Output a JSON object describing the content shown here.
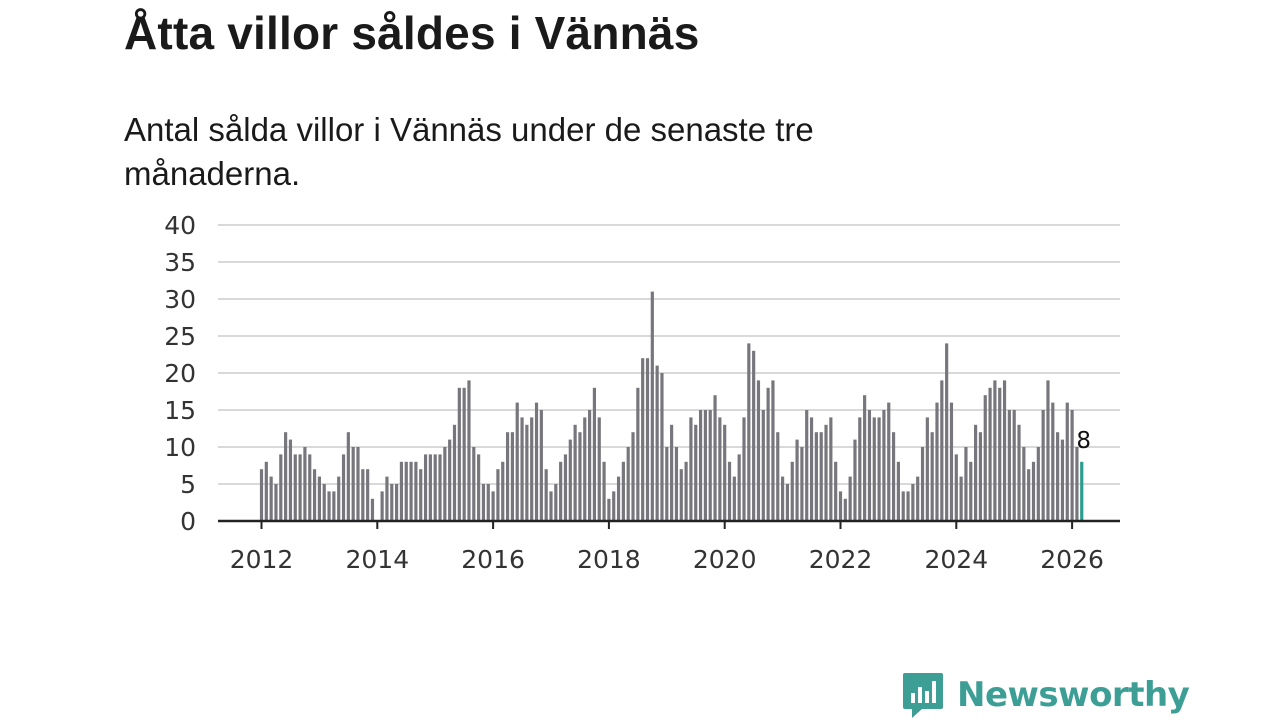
{
  "header": {
    "title": "Åtta villor såldes i Vännäs",
    "subtitle": "Antal sålda villor i Vännäs under de senaste tre månaderna."
  },
  "brand": {
    "name": "Newsworthy"
  },
  "colors": {
    "bar": "#76767c",
    "highlight": "#2a9d8f",
    "grid": "#d9d9d9",
    "axis": "#222222"
  },
  "chart_data": {
    "type": "bar",
    "title": "Åtta villor såldes i Vännäs",
    "xlabel": "",
    "ylabel": "",
    "ylim": [
      0,
      40
    ],
    "yticks": [
      "0",
      "5",
      "10",
      "15",
      "20",
      "25",
      "30",
      "35",
      "40"
    ],
    "xticks": [
      "2012",
      "2014",
      "2016",
      "2018",
      "2020",
      "2022",
      "2024",
      "2026"
    ],
    "start": "2012-01",
    "frequency": "monthly",
    "values": [
      7,
      8,
      6,
      5,
      9,
      12,
      11,
      9,
      9,
      10,
      9,
      7,
      6,
      5,
      4,
      4,
      6,
      9,
      12,
      10,
      10,
      7,
      7,
      3,
      0,
      4,
      6,
      5,
      5,
      8,
      8,
      8,
      8,
      7,
      9,
      9,
      9,
      9,
      10,
      11,
      13,
      18,
      18,
      19,
      10,
      9,
      5,
      5,
      4,
      7,
      8,
      12,
      12,
      16,
      14,
      13,
      14,
      16,
      15,
      7,
      4,
      5,
      8,
      9,
      11,
      13,
      12,
      14,
      15,
      18,
      14,
      8,
      3,
      4,
      6,
      8,
      10,
      12,
      18,
      22,
      22,
      31,
      21,
      20,
      10,
      13,
      10,
      7,
      8,
      14,
      13,
      15,
      15,
      15,
      17,
      14,
      13,
      8,
      6,
      9,
      14,
      24,
      23,
      19,
      15,
      18,
      19,
      12,
      6,
      5,
      8,
      11,
      10,
      15,
      14,
      12,
      12,
      13,
      14,
      8,
      4,
      3,
      6,
      11,
      14,
      17,
      15,
      14,
      14,
      15,
      16,
      12,
      8,
      4,
      4,
      5,
      6,
      10,
      14,
      12,
      16,
      19,
      24,
      16,
      9,
      6,
      10,
      8,
      13,
      12,
      17,
      18,
      19,
      18,
      19,
      15,
      15,
      13,
      10,
      7,
      8,
      10,
      15,
      19,
      16,
      12,
      11,
      16,
      15,
      10,
      8
    ],
    "highlight_last": true,
    "last_value_label": "8"
  }
}
